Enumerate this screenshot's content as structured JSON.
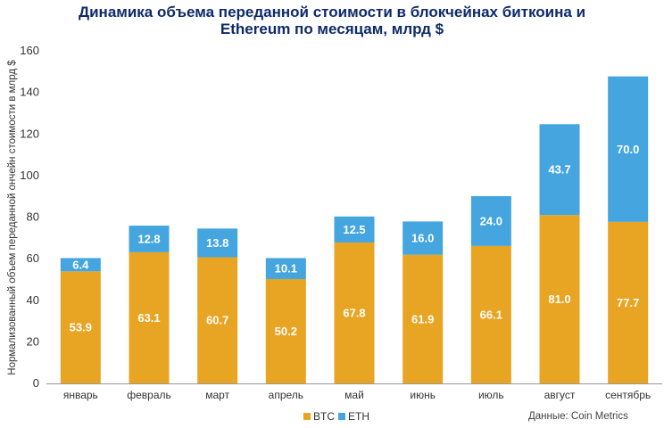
{
  "chart_data": {
    "type": "bar",
    "stacked": true,
    "title_line1": "Динамика объема переданной стоимости в блокчейнах биткоина и",
    "title_line2": "Ethereum по месяцам, млрд $",
    "ylabel": "Нормализованный объем переданной ончейн стоимости в млрд $",
    "xlabel": "",
    "ylim": [
      0,
      160
    ],
    "y_ticks": [
      0,
      20,
      40,
      60,
      80,
      100,
      120,
      140,
      160
    ],
    "grid": false,
    "legend_position": "bottom",
    "categories": [
      "январь",
      "февраль",
      "март",
      "апрель",
      "май",
      "июнь",
      "июль",
      "август",
      "сентябрь"
    ],
    "series": [
      {
        "name": "BTC",
        "color": "#E8A423",
        "values": [
          53.9,
          63.1,
          60.7,
          50.2,
          67.8,
          61.9,
          66.1,
          81.0,
          77.7
        ]
      },
      {
        "name": "ETH",
        "color": "#45A5DF",
        "values": [
          6.4,
          12.8,
          13.8,
          10.1,
          12.5,
          16.0,
          24.0,
          43.7,
          70.0
        ]
      }
    ],
    "source": "Данные: Coin Metrics",
    "title_color": "#0E2A6B",
    "label_color_light": "#ffffff",
    "axis_text_color": "#333333"
  }
}
